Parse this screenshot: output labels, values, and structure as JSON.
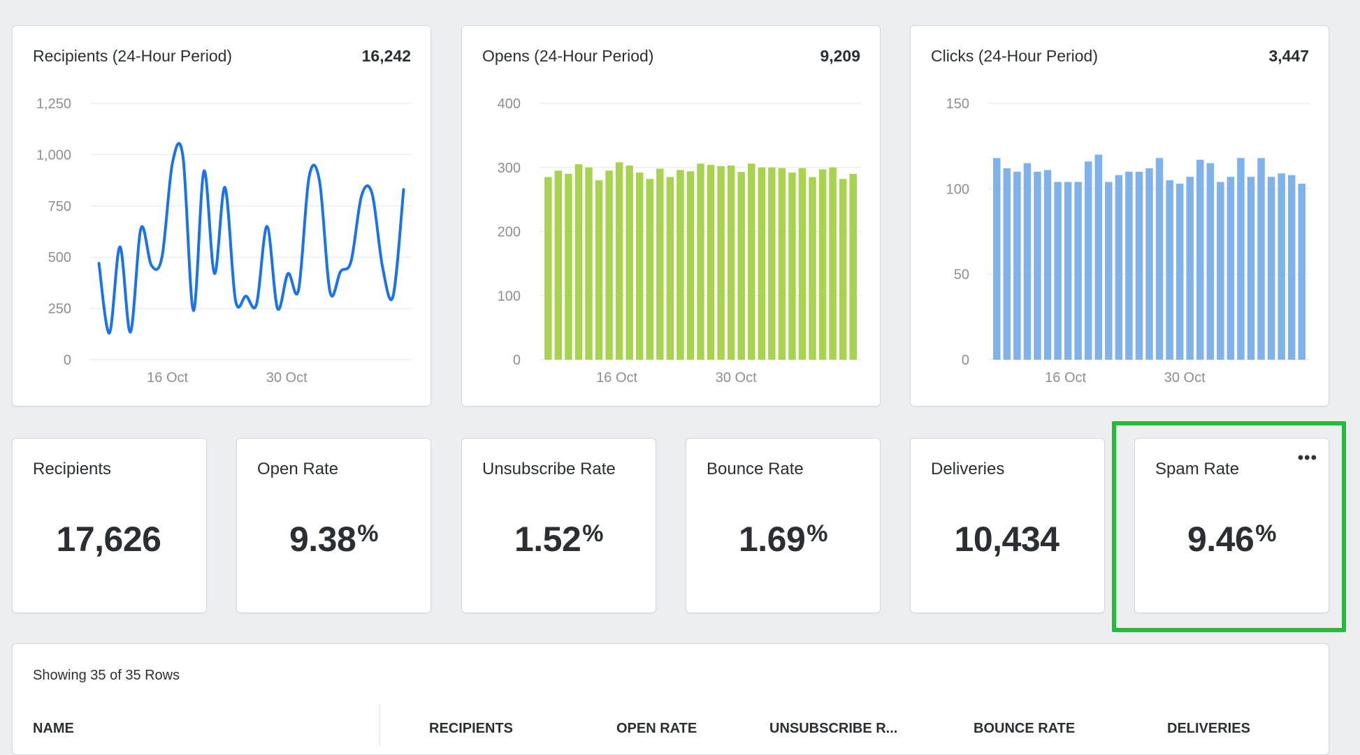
{
  "charts": [
    {
      "title": "Recipients (24-Hour Period)",
      "total": "16,242",
      "type": "line",
      "color": "#1a73e8",
      "y_ticks": [
        "1,250",
        "1,000",
        "750",
        "500",
        "250",
        "0"
      ],
      "x_ticks": [
        "16 Oct",
        "30 Oct"
      ]
    },
    {
      "title": "Opens (24-Hour Period)",
      "total": "9,209",
      "type": "bar",
      "color": "#a8d34f",
      "y_ticks": [
        "400",
        "300",
        "200",
        "100",
        "0"
      ],
      "x_ticks": [
        "16 Oct",
        "30 Oct"
      ]
    },
    {
      "title": "Clicks (24-Hour Period)",
      "total": "3,447",
      "type": "bar",
      "color": "#7fb2ea",
      "y_ticks": [
        "150",
        "100",
        "50",
        "0"
      ],
      "x_ticks": [
        "16 Oct",
        "30 Oct"
      ]
    }
  ],
  "chart_data": [
    {
      "type": "line",
      "title": "Recipients (24-Hour Period)",
      "ylim": [
        0,
        1250
      ],
      "x_ticks": [
        "16 Oct",
        "30 Oct"
      ],
      "values": [
        470,
        130,
        550,
        135,
        640,
        460,
        500,
        960,
        990,
        240,
        920,
        420,
        840,
        290,
        310,
        270,
        650,
        250,
        420,
        340,
        890,
        870,
        330,
        430,
        480,
        800,
        810,
        450,
        310,
        830
      ]
    },
    {
      "type": "bar",
      "title": "Opens (24-Hour Period)",
      "ylim": [
        0,
        400
      ],
      "x_ticks": [
        "16 Oct",
        "30 Oct"
      ],
      "values": [
        285,
        295,
        290,
        305,
        300,
        280,
        295,
        308,
        303,
        292,
        282,
        298,
        285,
        296,
        294,
        306,
        304,
        302,
        303,
        293,
        306,
        300,
        300,
        299,
        292,
        299,
        285,
        297,
        300,
        282,
        290
      ]
    },
    {
      "type": "bar",
      "title": "Clicks (24-Hour Period)",
      "ylim": [
        0,
        150
      ],
      "x_ticks": [
        "16 Oct",
        "30 Oct"
      ],
      "values": [
        118,
        112,
        110,
        115,
        110,
        111,
        104,
        104,
        104,
        116,
        120,
        104,
        108,
        110,
        110,
        112,
        118,
        105,
        103,
        107,
        117,
        115,
        104,
        107,
        118,
        107,
        118,
        107,
        109,
        108,
        103
      ]
    }
  ],
  "metrics": [
    {
      "label": "Recipients",
      "value": "17,626",
      "unit": ""
    },
    {
      "label": "Open Rate",
      "value": "9.38",
      "unit": "%"
    },
    {
      "label": "Unsubscribe Rate",
      "value": "1.52",
      "unit": "%"
    },
    {
      "label": "Bounce Rate",
      "value": "1.69",
      "unit": "%"
    },
    {
      "label": "Deliveries",
      "value": "10,434",
      "unit": ""
    },
    {
      "label": "Spam Rate",
      "value": "9.46",
      "unit": "%",
      "menu_icon": "more-horizontal-icon"
    }
  ],
  "table": {
    "rows_info": "Showing 35 of 35 Rows",
    "columns": [
      "NAME",
      "RECIPIENTS",
      "OPEN RATE",
      "UNSUBSCRIBE R...",
      "BOUNCE RATE",
      "DELIVERIES"
    ]
  },
  "colors": {
    "highlight": "#22bb3a",
    "background": "#eceef1"
  }
}
